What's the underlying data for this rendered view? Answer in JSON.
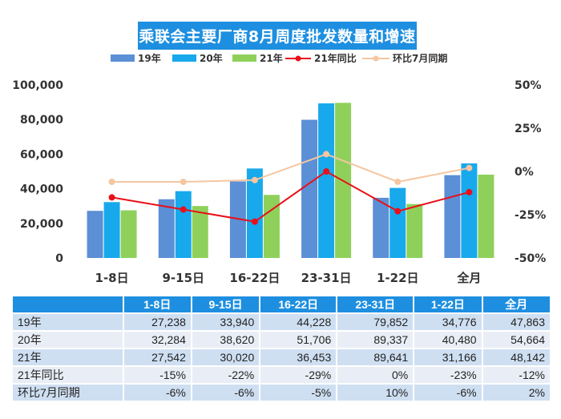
{
  "title": "乘联会主要厂商8月周度批发数量和增速",
  "legend": {
    "s19": "19年",
    "s20": "20年",
    "s21": "21年",
    "yoy": "21年同比",
    "mom": "环比7月同期"
  },
  "colors": {
    "s19": "#5b8fd6",
    "s20": "#17a9ec",
    "s21": "#8fd05a",
    "yoy": "#e8101a",
    "mom": "#f5c6a0",
    "title_bg": "#1e8fe0"
  },
  "chart_data": {
    "type": "bar",
    "categories": [
      "1-8日",
      "9-15日",
      "16-22日",
      "23-31日",
      "1-22日",
      "全月"
    ],
    "series": [
      {
        "name": "19年",
        "values": [
          27238,
          33940,
          44228,
          79852,
          34776,
          47863
        ]
      },
      {
        "name": "20年",
        "values": [
          32284,
          38620,
          51706,
          89337,
          40480,
          54664
        ]
      },
      {
        "name": "21年",
        "values": [
          27542,
          30020,
          36453,
          89641,
          31166,
          48142
        ]
      }
    ],
    "line_series": [
      {
        "name": "21年同比",
        "values": [
          -15,
          -22,
          -29,
          0,
          -23,
          -12
        ]
      },
      {
        "name": "环比7月同期",
        "values": [
          -6,
          -6,
          -5,
          10,
          -6,
          2
        ]
      }
    ],
    "ylim": [
      0,
      100000
    ],
    "yticks": [
      "100,000",
      "80,000",
      "60,000",
      "40,000",
      "20,000",
      "0"
    ],
    "y2lim": [
      -50,
      50
    ],
    "y2ticks": [
      "50%",
      "25%",
      "0%",
      "-25%",
      "-50%"
    ],
    "legend_position": "top"
  },
  "table": {
    "headers": [
      "1-8日",
      "9-15日",
      "16-22日",
      "23-31日",
      "1-22日",
      "全月"
    ],
    "rows": [
      {
        "label": "19年",
        "cells": [
          "27,238",
          "33,940",
          "44,228",
          "79,852",
          "34,776",
          "47,863"
        ]
      },
      {
        "label": "20年",
        "cells": [
          "32,284",
          "38,620",
          "51,706",
          "89,337",
          "40,480",
          "54,664"
        ]
      },
      {
        "label": "21年",
        "cells": [
          "27,542",
          "30,020",
          "36,453",
          "89,641",
          "31,166",
          "48,142"
        ]
      },
      {
        "label": "21年同比",
        "cells": [
          "-15%",
          "-22%",
          "-29%",
          "0%",
          "-23%",
          "-12%"
        ]
      },
      {
        "label": "环比7月同期",
        "cells": [
          "-6%",
          "-6%",
          "-5%",
          "10%",
          "-6%",
          "2%"
        ]
      }
    ]
  }
}
